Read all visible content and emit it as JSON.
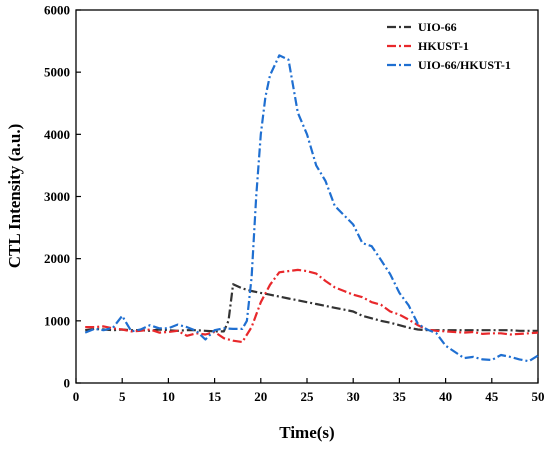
{
  "chart_data": {
    "type": "line",
    "title": "",
    "xlabel": "Time(s)",
    "ylabel": "CTL Intensity (a.u.)",
    "xlim": [
      0,
      50
    ],
    "ylim": [
      0,
      6000
    ],
    "xticks": [
      0,
      5,
      10,
      15,
      20,
      25,
      30,
      35,
      40,
      45,
      50
    ],
    "yticks": [
      0,
      1000,
      2000,
      3000,
      4000,
      5000,
      6000
    ],
    "grid": false,
    "legend_position": "top-right",
    "series": [
      {
        "name": "UIO-66",
        "color": "#333333",
        "x": [
          1,
          2,
          3,
          4,
          5,
          6,
          7,
          8,
          9,
          10,
          11,
          12,
          13,
          14,
          15,
          16,
          16.5,
          17,
          18,
          19,
          20,
          21,
          22,
          23,
          24,
          25,
          26,
          27,
          28,
          29,
          30,
          31,
          32,
          33,
          34,
          35,
          36,
          37,
          38,
          39,
          40,
          41,
          42,
          43,
          44,
          45,
          46,
          47,
          48,
          49,
          50
        ],
        "y": [
          850,
          870,
          860,
          850,
          860,
          850,
          850,
          840,
          860,
          850,
          840,
          850,
          850,
          840,
          830,
          830,
          1000,
          1590,
          1520,
          1480,
          1450,
          1420,
          1390,
          1360,
          1330,
          1300,
          1270,
          1240,
          1210,
          1180,
          1150,
          1080,
          1040,
          1000,
          970,
          930,
          890,
          860,
          850,
          850,
          850,
          850,
          850,
          850,
          850,
          850,
          850,
          850,
          840,
          840,
          840
        ]
      },
      {
        "name": "HKUST-1",
        "color": "#e8282b",
        "x": [
          1,
          2,
          3,
          4,
          5,
          6,
          7,
          8,
          9,
          10,
          11,
          12,
          13,
          14,
          15,
          16,
          17,
          18,
          19,
          20,
          21,
          22,
          23,
          24,
          25,
          26,
          27,
          28,
          29,
          30,
          31,
          32,
          33,
          34,
          35,
          36,
          37,
          38,
          39,
          40,
          41,
          42,
          43,
          44,
          45,
          46,
          47,
          48,
          49,
          50
        ],
        "y": [
          900,
          900,
          910,
          880,
          860,
          830,
          840,
          860,
          810,
          820,
          840,
          760,
          800,
          780,
          820,
          720,
          680,
          660,
          900,
          1300,
          1580,
          1780,
          1800,
          1820,
          1800,
          1760,
          1640,
          1540,
          1480,
          1420,
          1380,
          1300,
          1260,
          1150,
          1100,
          1020,
          930,
          860,
          840,
          830,
          820,
          810,
          820,
          790,
          800,
          800,
          780,
          790,
          800,
          810
        ]
      },
      {
        "name": "UIO-66/HKUST-1",
        "color": "#1f6fd1",
        "x": [
          1,
          2,
          3,
          4,
          5,
          6,
          7,
          8,
          9,
          10,
          11,
          12,
          13,
          14,
          15,
          16,
          17,
          18,
          18.5,
          19,
          19.5,
          20,
          20.5,
          21,
          22,
          23,
          24,
          25,
          26,
          27,
          28,
          29,
          30,
          31,
          32,
          33,
          34,
          35,
          36,
          37,
          38,
          39,
          40,
          41,
          42,
          43,
          44,
          45,
          46,
          47,
          48,
          49,
          50
        ],
        "y": [
          810,
          870,
          850,
          890,
          1080,
          830,
          860,
          930,
          880,
          880,
          940,
          900,
          840,
          700,
          850,
          880,
          870,
          870,
          1000,
          1700,
          3000,
          4000,
          4600,
          4950,
          5270,
          5200,
          4350,
          4000,
          3500,
          3250,
          2850,
          2700,
          2550,
          2250,
          2200,
          1980,
          1750,
          1450,
          1250,
          950,
          860,
          800,
          600,
          500,
          400,
          420,
          380,
          370,
          450,
          420,
          380,
          350,
          440
        ]
      }
    ]
  }
}
